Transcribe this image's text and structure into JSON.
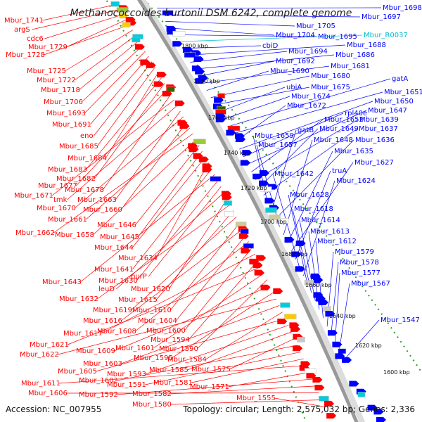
{
  "title": "Methanococcoides burtonii DSM 6242, complete genome",
  "accession": "Accession: NC_007955",
  "summary": "Topology: circular; Length: 2,575,032 bp; Genes: 2,336",
  "colors": {
    "forward": "#ff0000",
    "reverse": "#0000ff",
    "rna": "#00bbcc",
    "backbone": "#999999",
    "ring_dots": "#2aa02a"
  },
  "ticks": [
    "1800 kbp",
    "1780 kbp",
    "1760 kbp",
    "1740 kbp",
    "1720 kbp",
    "1700 kbp",
    "1680 kbp",
    "1660 kbp",
    "1640 kbp",
    "1620 kbp",
    "1600 kbp"
  ],
  "left_labels": [
    "Mbur_1741",
    "argS",
    "cdc6",
    "Mbur_1729",
    "Mbur_1728",
    "Mbur_1725",
    "Mbur_1722",
    "Mbur_1718",
    "Mbur_1706",
    "Mbur_1693",
    "Mbur_1691",
    "eno",
    "Mbur_1685",
    "Mbur_1684",
    "Mbur_1683",
    "Mbur_1682",
    "Mbur_1677",
    "Mbur_1678",
    "Mbur_1671",
    "tmk",
    "Mbur_1663",
    "Mbur_1670",
    "Mbur_1660",
    "Mbur_1661",
    "Mbur_1662",
    "Mbur_1658",
    "Mbur_1646",
    "Mbur_1645",
    "Mbur_1644",
    "Mbur_1634",
    "Mbur_1641",
    "Mbur_1643",
    "Mbur_1630",
    "purP",
    "leuD",
    "Mbur_1620",
    "Mbur_1632",
    "Mbur_1615",
    "Mbur_1619",
    "Mbur_1610",
    "Mbur_1616",
    "Mbur_1604",
    "Mbur_1608",
    "Mbur_1600",
    "Mbur_1617",
    "Mbur_1594",
    "Mbur_1621",
    "Mbur_1601",
    "Mbur_1590",
    "Mbur_1609",
    "Mbur_1595",
    "Mbur_1622",
    "Mbur_1603",
    "Mbur_1584",
    "Mbur_1605",
    "Mbur_1593",
    "Mbur_1585",
    "Mbur_1575",
    "Mbur_1602",
    "Mbur_1591",
    "Mbur_1581",
    "Mbur_1611",
    "Mbur_1571",
    "Mbur_1592",
    "Mbur_1582",
    "Mbur_1606",
    "Mbur_1580",
    "Mbur_1555"
  ],
  "right_labels": [
    "Mbur_1698",
    "Mbur_1697",
    "Mbur_1705",
    "Mbur_1704",
    "Mbur_1695",
    "Mbur_R0037",
    "cbiD",
    "Mbur_1688",
    "Mbur_1694",
    "Mbur_1686",
    "Mbur_1692",
    "Mbur_1681",
    "Mbur_1690",
    "Mbur_1680",
    "Mbur_1675",
    "ubiA",
    "Mbur_1674",
    "gatA",
    "Mbur_1651",
    "Mbur_1672",
    "Mbur_1650",
    "rpl40e",
    "Mbur_1647",
    "Mbur_1652",
    "Mbur_1639",
    "Mbur_1649",
    "Mbur_1637",
    "Mbur_1659",
    "gatB",
    "Mbur_1636",
    "Mbur_1657",
    "Mbur_1648",
    "Mbur_1635",
    "Mbur_1627",
    "truA",
    "Mbur_1642",
    "Mbur_1624",
    "Mbur_1628",
    "Mbur_1618",
    "Mbur_1614",
    "Mbur_1613",
    "Mbur_1612",
    "Mbur_1579",
    "Mbur_1578",
    "Mbur_1577",
    "Mbur_1567",
    "Mbur_1547"
  ]
}
